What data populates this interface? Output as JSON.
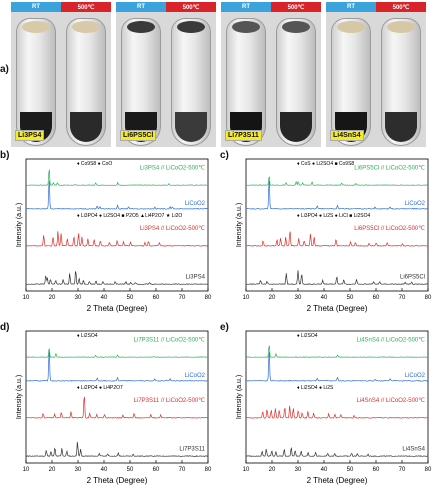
{
  "figure": {
    "panel_a": {
      "letter": "a)",
      "rt_label": "RT",
      "hot_label": "500℃",
      "samples": [
        {
          "label": "Li3PS4",
          "cap_color": "#d8c9a8",
          "rt_powder": "#1c1c1c",
          "hot_powder": "#2a2a2a"
        },
        {
          "label": "Li6PS5Cl",
          "cap_color": "#3a3a3a",
          "rt_powder": "#1a1a1a",
          "hot_powder": "#3a3a3a"
        },
        {
          "label": "Li7P3S11",
          "cap_color": "#555555",
          "rt_powder": "#141414",
          "hot_powder": "#262626"
        },
        {
          "label": "Li4SnS4",
          "cap_color": "#d6c7a5",
          "rt_powder": "#161616",
          "hot_powder": "#2d2d2d"
        }
      ]
    }
  },
  "chart_data": [
    {
      "panel": "b)",
      "type": "line",
      "xlabel": "2 Theta (Degree)",
      "ylabel": "Intensity (a.u.)",
      "xlim": [
        10,
        80
      ],
      "xticks": [
        10,
        20,
        30,
        40,
        50,
        60,
        70,
        80
      ],
      "legends": [
        {
          "text": "♦ Co9S8 ● CoO",
          "color": "#000000"
        },
        {
          "text": "♦ Li3PO4 ● Li2SO4 ■ P2O5 ▲Li4P2O7 ★ Li2O",
          "color": "#000000"
        }
      ],
      "series": [
        {
          "name": "Li3PS4 // LiCoO2-500℃",
          "color": "#2eb05a",
          "peaks": [
            [
              18.9,
              40
            ],
            [
              20.5,
              6
            ],
            [
              22.1,
              6
            ],
            [
              36.8,
              5
            ],
            [
              45.3,
              6
            ],
            [
              65,
              3
            ]
          ]
        },
        {
          "name": "LiCoO2",
          "color": "#2f6fd8",
          "peaks": [
            [
              18.9,
              55
            ],
            [
              37.4,
              5
            ],
            [
              38.4,
              4
            ],
            [
              45.2,
              6
            ],
            [
              49.4,
              3
            ],
            [
              59.6,
              3
            ],
            [
              65.4,
              4
            ],
            [
              66.3,
              3
            ]
          ]
        },
        {
          "name": "Li3PS4 // LiCoO2-500℃",
          "color": "#e0302d",
          "peaks": [
            [
              16.8,
              20
            ],
            [
              20.4,
              18
            ],
            [
              22.3,
              28
            ],
            [
              23.5,
              22
            ],
            [
              25.9,
              14
            ],
            [
              28.4,
              18
            ],
            [
              30.2,
              24
            ],
            [
              31.5,
              16
            ],
            [
              33.8,
              14
            ],
            [
              36.2,
              12
            ],
            [
              38.6,
              9
            ],
            [
              42.1,
              7
            ],
            [
              45.1,
              10
            ],
            [
              47.5,
              8
            ],
            [
              50.2,
              7
            ],
            [
              55.8,
              6
            ],
            [
              57.1,
              9
            ],
            [
              61.3,
              5
            ]
          ]
        },
        {
          "name": "Li3PS4",
          "color": "#333333",
          "peaks": [
            [
              17.6,
              18
            ],
            [
              18.2,
              12
            ],
            [
              19.4,
              10
            ],
            [
              21.4,
              8
            ],
            [
              24.3,
              10
            ],
            [
              26.8,
              22
            ],
            [
              29.1,
              30
            ],
            [
              30.4,
              12
            ],
            [
              32.1,
              8
            ],
            [
              34.4,
              6
            ],
            [
              36.9,
              7
            ],
            [
              39.6,
              6
            ],
            [
              44.3,
              5
            ],
            [
              48.4,
              5
            ],
            [
              50.3,
              4
            ],
            [
              52.1,
              4
            ],
            [
              57.5,
              3
            ]
          ]
        }
      ],
      "series_labels": [
        "Li3PS4 // LiCoO2-500℃",
        "LiCoO2",
        "Li3PS4 // LiCoO2-500℃",
        "Li3PS4"
      ]
    },
    {
      "panel": "c)",
      "type": "line",
      "xlabel": "2 Theta (Degree)",
      "ylabel": "Intensity (a.u.)",
      "xlim": [
        10,
        80
      ],
      "xticks": [
        10,
        20,
        30,
        40,
        50,
        60,
        70,
        80
      ],
      "legends": [
        {
          "text": "♦ CoS ● Li2SO4 ■ Co9S8",
          "color": "#000000"
        },
        {
          "text": "♦ Li3PO4 ● Li2S ● LiCl ■ Li2SO4",
          "color": "#000000"
        }
      ],
      "series": [
        {
          "name": "Li6PS5Cl // LiCoO2-500℃",
          "color": "#2eb05a",
          "peaks": [
            [
              18.9,
              22
            ],
            [
              25.4,
              6
            ],
            [
              29.3,
              7
            ],
            [
              30.1,
              8
            ],
            [
              31.8,
              6
            ],
            [
              35.4,
              8
            ],
            [
              46.8,
              5
            ],
            [
              52.3,
              4
            ]
          ]
        },
        {
          "name": "LiCoO2",
          "color": "#2f6fd8",
          "peaks": [
            [
              18.9,
              55
            ],
            [
              37.4,
              5
            ],
            [
              45.2,
              6
            ],
            [
              59.6,
              3
            ],
            [
              65.4,
              4
            ]
          ]
        },
        {
          "name": "Li6PS5Cl // LiCoO2-500℃",
          "color": "#e0302d",
          "peaks": [
            [
              16.6,
              10
            ],
            [
              21.9,
              12
            ],
            [
              23.3,
              14
            ],
            [
              25.3,
              16
            ],
            [
              26.9,
              30
            ],
            [
              30.3,
              14
            ],
            [
              32.4,
              10
            ],
            [
              34.8,
              22
            ],
            [
              36.2,
              16
            ],
            [
              44.6,
              12
            ],
            [
              50.2,
              8
            ],
            [
              52.1,
              6
            ],
            [
              57.3,
              5
            ],
            [
              60.1,
              6
            ],
            [
              64.3,
              6
            ],
            [
              70.2,
              4
            ]
          ]
        },
        {
          "name": "Li6PS5Cl",
          "color": "#333333",
          "peaks": [
            [
              15.6,
              8
            ],
            [
              18.1,
              6
            ],
            [
              25.5,
              22
            ],
            [
              30.0,
              28
            ],
            [
              31.4,
              22
            ],
            [
              39.5,
              8
            ],
            [
              44.9,
              16
            ],
            [
              47.6,
              10
            ],
            [
              52.5,
              10
            ],
            [
              59.1,
              5
            ],
            [
              61.4,
              5
            ],
            [
              71.2,
              4
            ],
            [
              73.7,
              4
            ]
          ]
        }
      ],
      "series_labels": [
        "Li6PS5Cl // LiCoO2-500℃",
        "LiCoO2",
        "Li6PS5Cl // LiCoO2-500℃",
        "Li6PS5Cl"
      ]
    },
    {
      "panel": "d)",
      "type": "line",
      "xlabel": "2 Theta (Degree)",
      "ylabel": "Intensity (a.u.)",
      "xlim": [
        10,
        80
      ],
      "xticks": [
        10,
        20,
        30,
        40,
        50,
        60,
        70,
        80
      ],
      "legends": [
        {
          "text": "♦ Li2SO4",
          "color": "#000000"
        },
        {
          "text": "♦ Li2PO4 ● Li4P2O7",
          "color": "#000000"
        }
      ],
      "series": [
        {
          "name": "Li7P3S11 // LiCoO2-500℃",
          "color": "#2eb05a",
          "peaks": [
            [
              18.9,
              22
            ],
            [
              21.5,
              8
            ],
            [
              36.8,
              4
            ],
            [
              45.2,
              5
            ]
          ]
        },
        {
          "name": "LiCoO2",
          "color": "#2f6fd8",
          "peaks": [
            [
              18.9,
              55
            ],
            [
              37.4,
              5
            ],
            [
              45.2,
              6
            ],
            [
              59.6,
              3
            ],
            [
              65.4,
              4
            ]
          ]
        },
        {
          "name": "Li7P3S11 // LiCoO2-500℃",
          "color": "#e0302d",
          "peaks": [
            [
              16.6,
              8
            ],
            [
              21.0,
              7
            ],
            [
              23.6,
              10
            ],
            [
              27.3,
              12
            ],
            [
              32.4,
              45
            ],
            [
              34.5,
              8
            ],
            [
              37.2,
              6
            ],
            [
              40.2,
              6
            ],
            [
              47.3,
              5
            ],
            [
              51.6,
              9
            ],
            [
              58.0,
              6
            ],
            [
              61.8,
              5
            ]
          ]
        },
        {
          "name": "Li7P3S11",
          "color": "#333333",
          "peaks": [
            [
              17.8,
              12
            ],
            [
              19.6,
              10
            ],
            [
              21.1,
              18
            ],
            [
              23.8,
              16
            ],
            [
              25.7,
              10
            ],
            [
              29.8,
              30
            ],
            [
              31.0,
              14
            ],
            [
              38.2,
              6
            ],
            [
              41.4,
              5
            ],
            [
              45.5,
              6
            ],
            [
              51.2,
              4
            ]
          ]
        }
      ],
      "series_labels": [
        "Li7P3S11 // LiCoO2-500℃",
        "LiCoO2",
        "Li7P3S11 // LiCoO2-500℃",
        "Li7P3S11"
      ]
    },
    {
      "panel": "e)",
      "type": "line",
      "xlabel": "2 Theta (Degree)",
      "ylabel": "Intensity (a.u.)",
      "xlim": [
        10,
        80
      ],
      "xticks": [
        10,
        20,
        30,
        40,
        50,
        60,
        70,
        80
      ],
      "legends": [
        {
          "text": "♦ Li2SO4",
          "color": "#000000"
        },
        {
          "text": "♦ Li2SO4 ● Li2S",
          "color": "#000000"
        }
      ],
      "series": [
        {
          "name": "Li4SnS4 // LiCoO2-500℃",
          "color": "#2eb05a",
          "peaks": [
            [
              18.9,
              30
            ],
            [
              21.5,
              8
            ],
            [
              45.2,
              5
            ]
          ]
        },
        {
          "name": "LiCoO2",
          "color": "#2f6fd8",
          "peaks": [
            [
              18.9,
              55
            ],
            [
              37.4,
              5
            ],
            [
              45.2,
              6
            ],
            [
              59.6,
              3
            ],
            [
              65.4,
              4
            ]
          ]
        },
        {
          "name": "Li4SnS4 // LiCoO2-500℃",
          "color": "#e0302d",
          "peaks": [
            [
              16.4,
              12
            ],
            [
              18.1,
              16
            ],
            [
              19.7,
              14
            ],
            [
              21.3,
              18
            ],
            [
              22.8,
              14
            ],
            [
              24.9,
              20
            ],
            [
              26.8,
              22
            ],
            [
              28.2,
              18
            ],
            [
              30.1,
              14
            ],
            [
              31.6,
              10
            ],
            [
              33.8,
              12
            ],
            [
              36.0,
              8
            ],
            [
              41.8,
              8
            ],
            [
              44.2,
              6
            ],
            [
              46.5,
              6
            ],
            [
              51.6,
              5
            ]
          ]
        },
        {
          "name": "Li4SnS4",
          "color": "#333333",
          "peaks": [
            [
              16.2,
              10
            ],
            [
              17.8,
              14
            ],
            [
              19.9,
              12
            ],
            [
              21.5,
              10
            ],
            [
              24.7,
              14
            ],
            [
              27.4,
              18
            ],
            [
              28.9,
              12
            ],
            [
              31.2,
              10
            ],
            [
              33.9,
              8
            ],
            [
              36.8,
              8
            ],
            [
              41.4,
              6
            ],
            [
              44.1,
              6
            ],
            [
              50.6,
              6
            ],
            [
              52.8,
              5
            ],
            [
              56.9,
              4
            ]
          ]
        }
      ],
      "series_labels": [
        "Li4SnS4 // LiCoO2-500℃",
        "LiCoO2",
        "Li4SnS4 // LiCoO2-500℃",
        "Li4SnS4"
      ]
    }
  ]
}
